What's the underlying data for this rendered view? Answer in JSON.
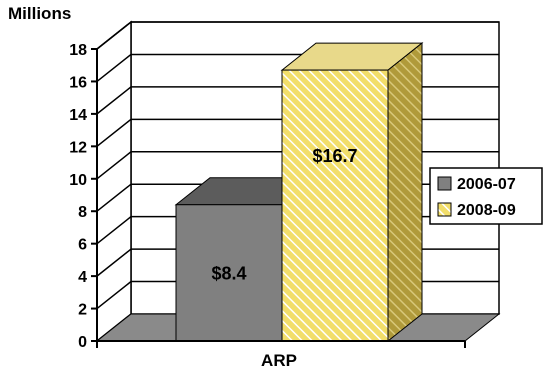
{
  "chart_data": {
    "type": "bar",
    "title": "",
    "ylabel": "Millions",
    "xlabel": "",
    "categories": [
      "ARP"
    ],
    "series": [
      {
        "name": "2006-07",
        "values": [
          8.4
        ],
        "label": "$8.4"
      },
      {
        "name": "2008-09",
        "values": [
          16.7
        ],
        "label": "$16.7"
      }
    ],
    "ylim": [
      0,
      18
    ],
    "yticks": [
      0,
      2,
      4,
      6,
      8,
      10,
      12,
      14,
      16,
      18
    ],
    "grid": true,
    "legend": "right",
    "colors": {
      "2006-07": "#808080",
      "2008-09": "#f2de6a",
      "2008-09_hatch": "#ffffff",
      "floor": "#8a8a8a",
      "grid": "#000000"
    }
  }
}
